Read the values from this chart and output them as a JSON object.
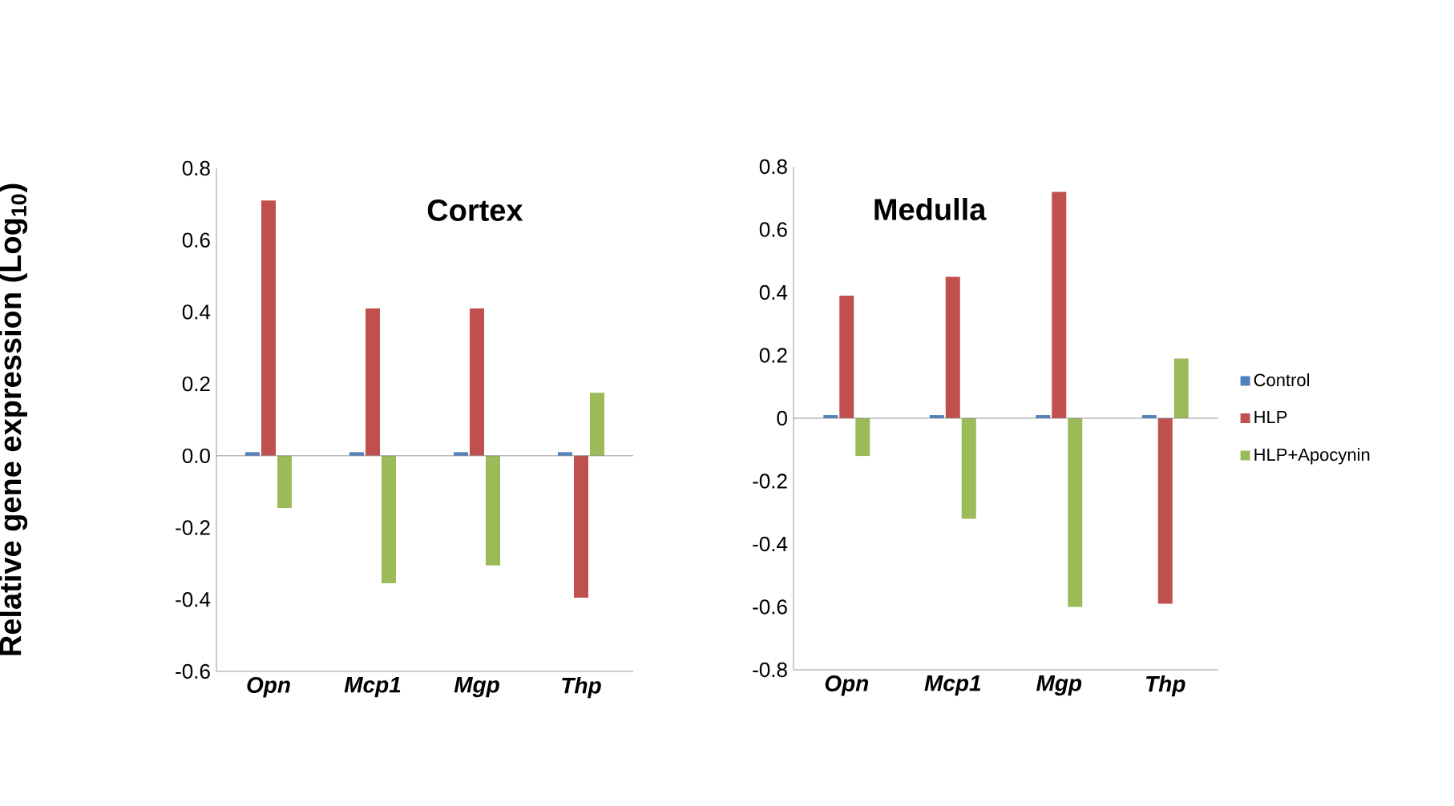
{
  "chart_data": [
    {
      "type": "bar",
      "title": "Cortex",
      "ylabel": "Relative gene expression (Log$_{10}$)",
      "categories": [
        "Opn",
        "Mcp1",
        "Mgp",
        "Thp"
      ],
      "ylim": [
        -0.6,
        0.8
      ],
      "yticks": [
        -0.6,
        -0.4,
        -0.2,
        {
          "value": 0,
          "label": "0.0"
        },
        0.2,
        0.4,
        0.6,
        0.8
      ],
      "series": [
        {
          "color": "#4f81bd",
          "values": [
            0.01,
            0.01,
            0.01,
            0.01
          ]
        },
        {
          "color": "#c0504d",
          "values": [
            0.71,
            0.41,
            0.41,
            -0.395
          ]
        },
        {
          "color": "#9bbb59",
          "values": [
            -0.145,
            -0.355,
            -0.305,
            0.175
          ]
        }
      ]
    },
    {
      "type": "bar",
      "title": "Medulla",
      "categories": [
        "Opn",
        "Mcp1",
        "Mgp",
        "Thp"
      ],
      "ylim": [
        -0.8,
        0.8
      ],
      "yticks": [
        -0.8,
        -0.6,
        -0.4,
        -0.2,
        0,
        0.2,
        0.4,
        0.6,
        0.8
      ],
      "legend": "right",
      "series": [
        {
          "name": "Control",
          "color": "#4f81bd",
          "values": [
            0.01,
            0.01,
            0.01,
            0.01
          ]
        },
        {
          "name": "HLP",
          "color": "#c0504d",
          "values": [
            0.39,
            0.45,
            0.72,
            -0.59
          ]
        },
        {
          "name": "HLP+Apocynin",
          "color": "#9bbb59",
          "values": [
            -0.12,
            -0.32,
            -0.6,
            0.19
          ]
        }
      ]
    }
  ]
}
